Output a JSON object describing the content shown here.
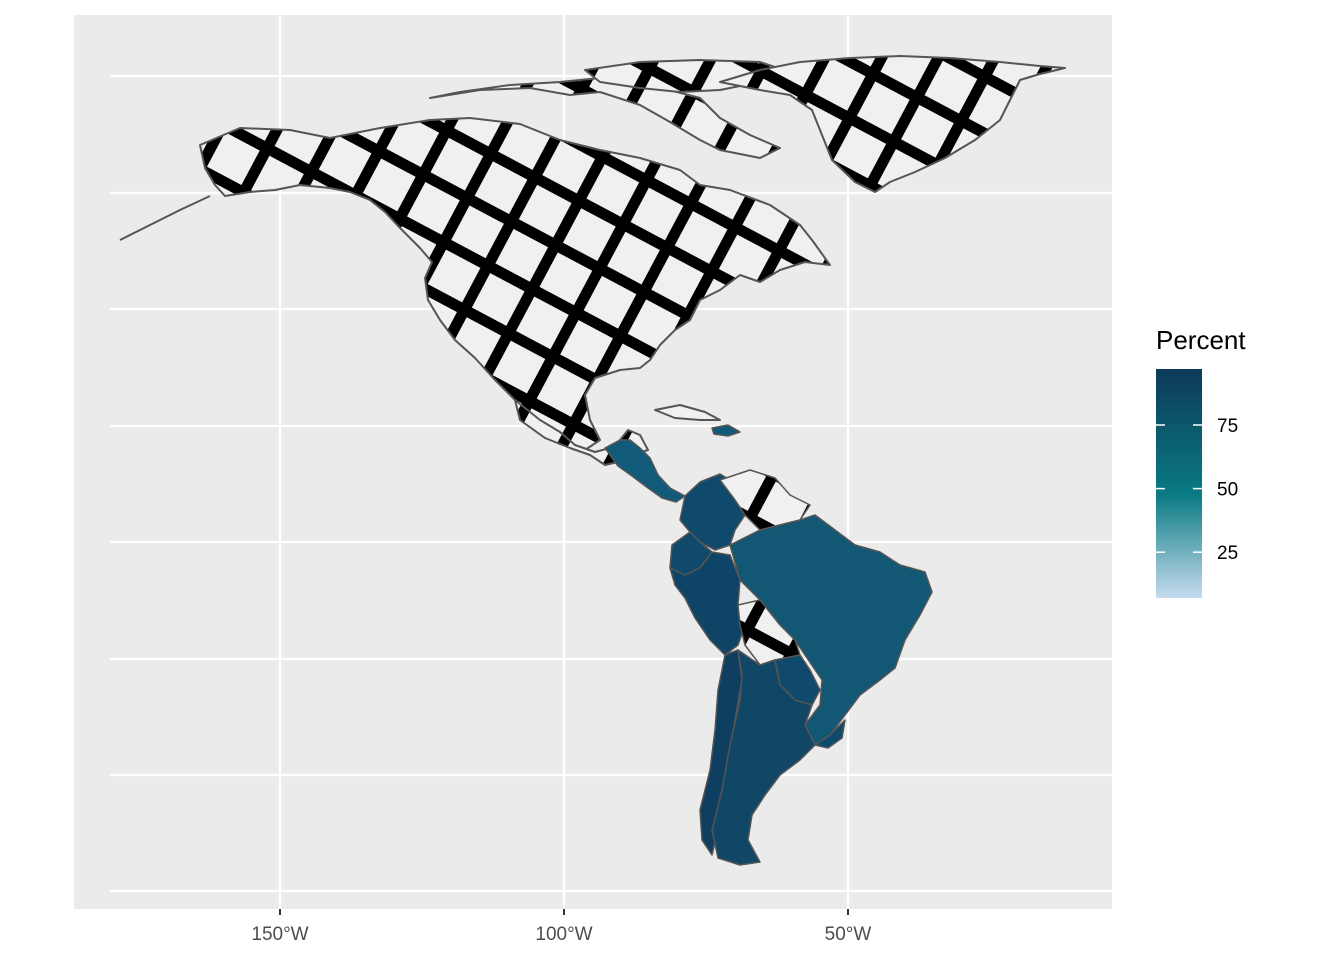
{
  "chart_data": {
    "type": "choropleth",
    "title": "",
    "xlabel": "",
    "ylabel": "",
    "x_ticks": [
      "150°W",
      "100°W",
      "50°W"
    ],
    "grid": true,
    "legend": {
      "title": "Percent",
      "position": "right",
      "ticks": [
        25,
        50,
        75
      ],
      "range": [
        7,
        97
      ],
      "gradient": [
        "#c6dbef",
        "#0a7b83",
        "#0d3a58"
      ]
    },
    "missing_fill_pattern": "crosshatch",
    "regions": [
      {
        "name": "Colombia",
        "value": 90
      },
      {
        "name": "Ecuador",
        "value": 91
      },
      {
        "name": "Peru",
        "value": 93
      },
      {
        "name": "Brazil",
        "value": 85
      },
      {
        "name": "Chile",
        "value": 94
      },
      {
        "name": "Argentina",
        "value": 92
      },
      {
        "name": "Uruguay",
        "value": 91
      },
      {
        "name": "Paraguay",
        "value": 90
      },
      {
        "name": "Central America",
        "value": 82
      }
    ]
  },
  "colors": {
    "panel": "#ebebeb",
    "grid": "#ffffff",
    "border": "#555555",
    "hatch": "#000000",
    "land_fill": "#f0f0f0"
  }
}
